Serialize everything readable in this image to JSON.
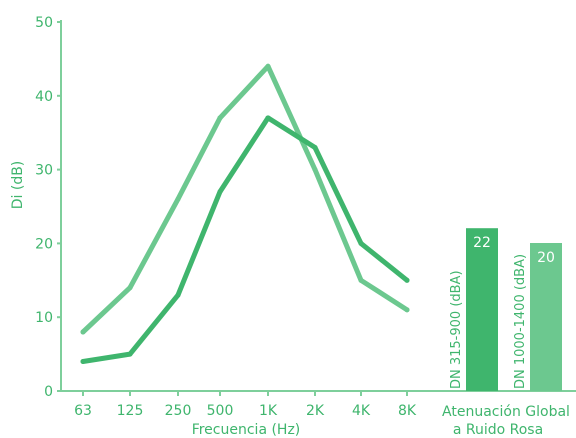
{
  "chart_data": {
    "type": "line",
    "xlabel": "Frecuencia (Hz)",
    "ylabel": "Di (dB)",
    "ylim": [
      0,
      50
    ],
    "yticks": [
      "0",
      "10",
      "20",
      "30",
      "40",
      "50"
    ],
    "categories": [
      "63",
      "125",
      "250",
      "500",
      "1K",
      "2K",
      "4K",
      "8K"
    ],
    "series": [
      {
        "color": "#6cc88f",
        "values": [
          8,
          14,
          26,
          37,
          44,
          30,
          15,
          11
        ]
      },
      {
        "color": "#3fb56d",
        "values": [
          4,
          5,
          13,
          27,
          37,
          33,
          20,
          15
        ]
      }
    ],
    "grid": false,
    "bars": [
      {
        "label": "DN 315-900 (dBA)",
        "value": 22,
        "value_label": "22",
        "color": "#3fb56d"
      },
      {
        "label": "DN 1000-1400 (dBA)",
        "value": 20,
        "value_label": "20",
        "color": "#6cc88f"
      }
    ],
    "bars_caption": [
      "Atenuación Global",
      "a Ruido Rosa"
    ]
  },
  "colors": {
    "axis": "#7ecf9b",
    "text": "#3fb56d"
  }
}
